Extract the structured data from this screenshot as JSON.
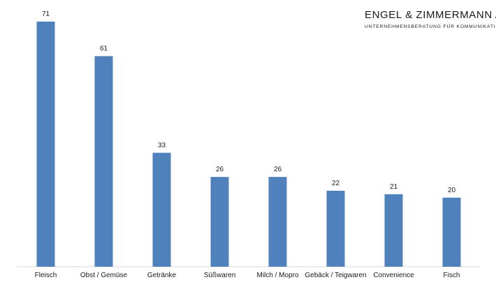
{
  "logo": {
    "name": "ENGEL & ZIMMERMANN AG",
    "tagline": "UNTERNEHMENSBERATUNG FÜR KOMMUNIKATION"
  },
  "chart_data": {
    "type": "bar",
    "categories": [
      "Fleisch",
      "Obst / Gemüse",
      "Getränke",
      "Süßwaren",
      "Milch / Mopro",
      "Gebäck / Teigwaren",
      "Convenience",
      "Fisch"
    ],
    "values": [
      71,
      61,
      33,
      26,
      26,
      22,
      21,
      20
    ],
    "title": "",
    "xlabel": "",
    "ylabel": "",
    "ylim": [
      0,
      71
    ],
    "grid": false,
    "legend": "none",
    "bar_color": "#4f81bd",
    "data_labels": true
  }
}
